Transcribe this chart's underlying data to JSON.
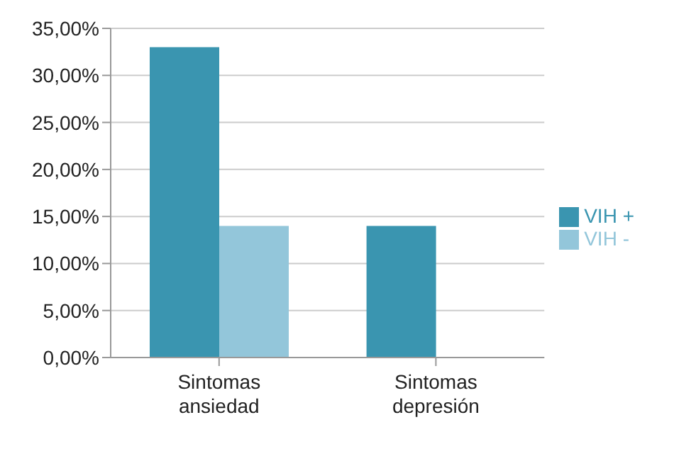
{
  "chart_data": {
    "type": "bar",
    "categories": [
      "Sintomas ansiedad",
      "Sintomas depresión"
    ],
    "series": [
      {
        "name": "VIH +",
        "color": "#3a95b0",
        "values": [
          33,
          14
        ]
      },
      {
        "name": "VIH -",
        "color": "#93c6da",
        "values": [
          14,
          0
        ]
      }
    ],
    "ylim": [
      0,
      35
    ],
    "yticks": [
      {
        "value": 0,
        "label": "0,00%"
      },
      {
        "value": 5,
        "label": "5,00%"
      },
      {
        "value": 10,
        "label": "10,00%"
      },
      {
        "value": 15,
        "label": "15,00%"
      },
      {
        "value": 20,
        "label": "20,00%"
      },
      {
        "value": 25,
        "label": "25,00%"
      },
      {
        "value": 30,
        "label": "30,00%"
      },
      {
        "value": 35,
        "label": "35,00%"
      }
    ],
    "grid": "y",
    "legend": "right"
  }
}
